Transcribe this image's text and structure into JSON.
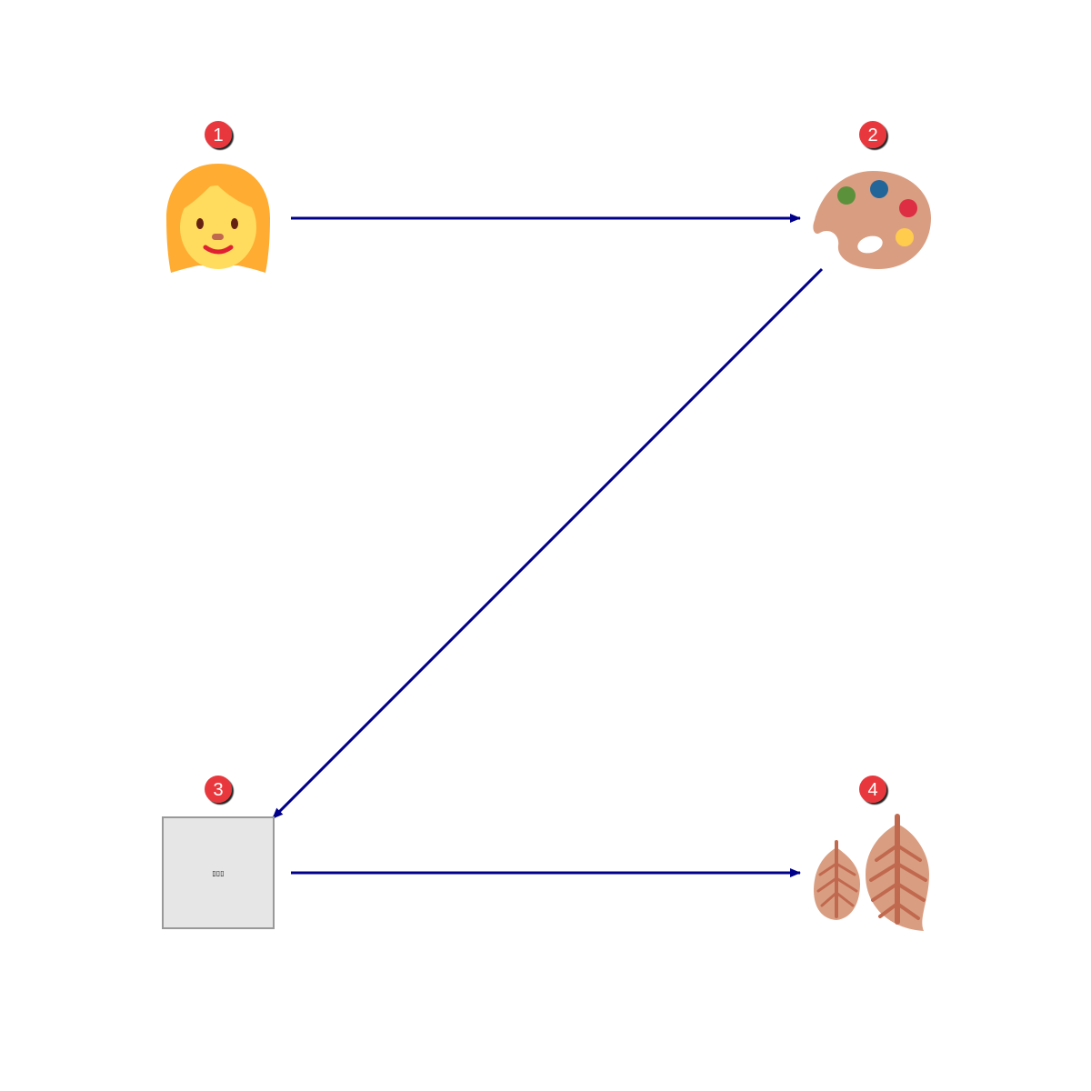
{
  "diagram": {
    "type": "flow",
    "nodes": [
      {
        "id": 1,
        "badge": "1",
        "icon": "woman-face-icon"
      },
      {
        "id": 2,
        "badge": "2",
        "icon": "artist-palette-icon"
      },
      {
        "id": 3,
        "badge": "3",
        "icon": "missing-image-placeholder",
        "placeholder_text": "▯▯▯"
      },
      {
        "id": 4,
        "badge": "4",
        "icon": "leaves-icon"
      }
    ],
    "edges": [
      {
        "from": 1,
        "to": 2
      },
      {
        "from": 2,
        "to": 3
      },
      {
        "from": 3,
        "to": 4
      }
    ]
  },
  "colors": {
    "arrow": "#00008b",
    "badge_fill": "#e8373c",
    "badge_text": "#ffffff",
    "hair": "#ffac33",
    "skin": "#ffdc5d",
    "palette": "#d99e82",
    "leaf": "#d99e82",
    "leaf_vein": "#c1694f",
    "placeholder_fill": "#e6e6e6",
    "placeholder_border": "#999999"
  }
}
